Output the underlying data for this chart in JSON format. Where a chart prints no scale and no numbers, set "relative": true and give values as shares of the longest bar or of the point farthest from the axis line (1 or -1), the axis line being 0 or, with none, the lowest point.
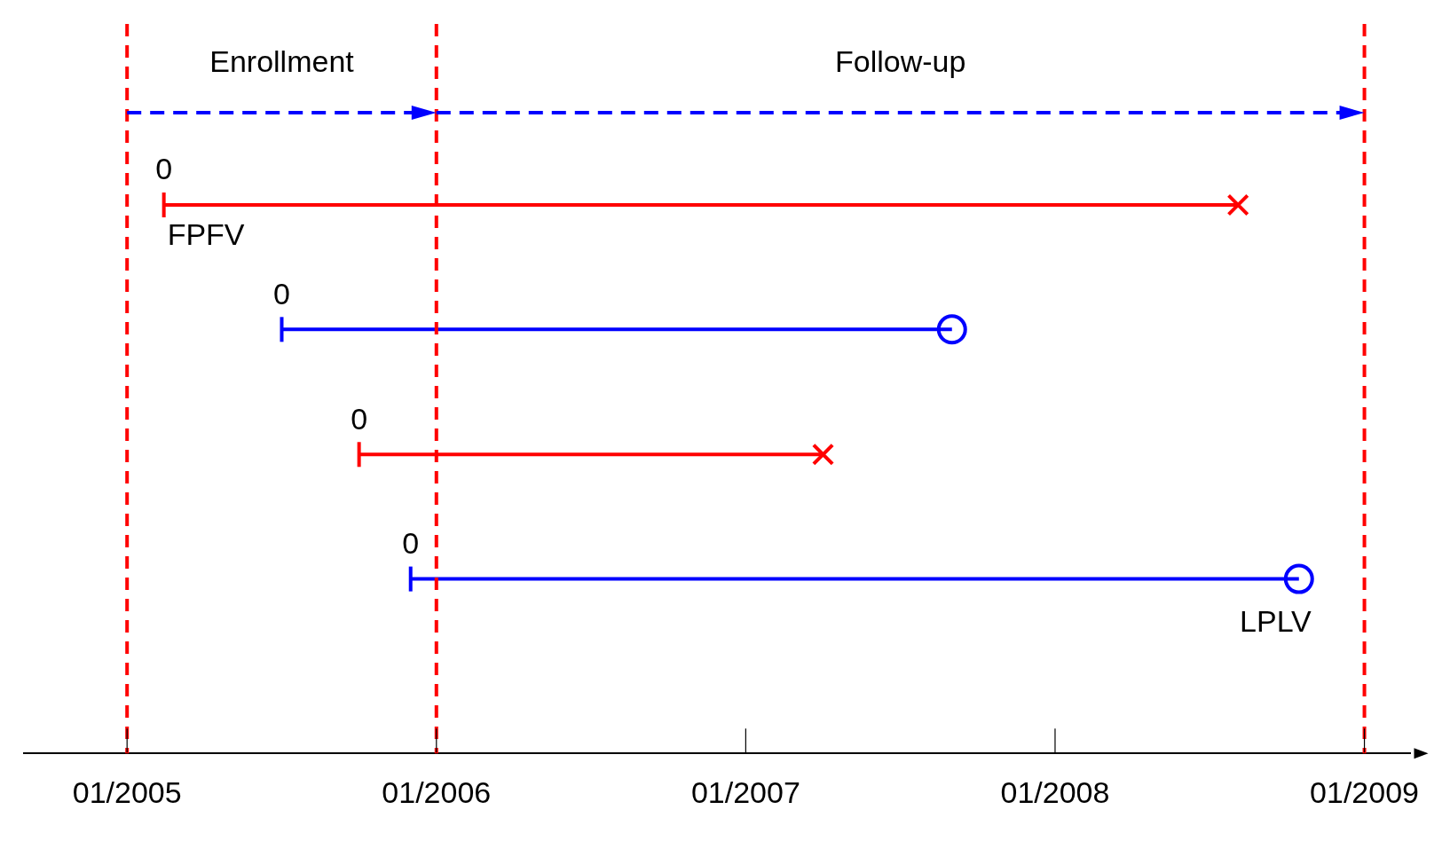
{
  "chart_data": {
    "type": "line",
    "relative": true,
    "series": [
      {
        "type": "line",
        "color": "#ff0000",
        "x": [
          "2005-02-14",
          "2008-08-04"
        ],
        "values": [
          1,
          1
        ]
      },
      {
        "type": "line",
        "color": "#0000ff",
        "x": [
          "2005-07-01",
          "2007-09-01"
        ],
        "values": [
          0.773,
          0.773
        ]
      },
      {
        "type": "line",
        "color": "#ff0000",
        "x": [
          "2005-10-01",
          "2007-04-01"
        ],
        "values": [
          0.545,
          0.545
        ]
      },
      {
        "type": "line",
        "color": "#0000ff",
        "x": [
          "2005-12-01",
          "2008-10-15"
        ],
        "values": [
          0.318,
          0.318
        ]
      },
      {
        "type": "scatter",
        "color": "#ff0000",
        "marker": "cross",
        "x": [
          "2008-08-04",
          "2007-04-01"
        ],
        "values": [
          1,
          0.545
        ]
      },
      {
        "type": "scatter",
        "color": "#0000ff",
        "marker": "circle",
        "x": [
          "2007-09-01",
          "2008-10-15"
        ],
        "values": [
          0.773,
          0.318
        ]
      }
    ],
    "xlim": [
      "2004-09-01",
      "2009-02-25"
    ],
    "xticks": [
      {
        "value": "2005-01",
        "label": "01/2005"
      },
      {
        "value": "2006-01",
        "label": "01/2006"
      },
      {
        "value": "2007-01",
        "label": "01/2007"
      },
      {
        "value": "2008-01",
        "label": "01/2008"
      },
      {
        "value": "2009-01",
        "label": "01/2009"
      }
    ],
    "ref_lines": [
      {
        "axis": "x",
        "value": "2005-01",
        "color": "#ff0000",
        "line_style": "dashed"
      },
      {
        "axis": "x",
        "value": "2006-01",
        "color": "#ff0000",
        "line_style": "dashed"
      },
      {
        "axis": "x",
        "value": "2009-01",
        "color": "#ff0000",
        "line_style": "dashed"
      }
    ],
    "annotations": [
      "Enrollment",
      "Follow-up",
      {
        "text": "0",
        "x": "2005-02-14",
        "y": 1
      },
      {
        "text": "0",
        "x": "2005-07-01",
        "y": 0.773
      },
      {
        "text": "0",
        "x": "2005-10-01",
        "y": 0.545
      },
      {
        "text": "0",
        "x": "2005-12-01",
        "y": 0.318
      },
      {
        "text": "FPFV",
        "x": "2005-02-14",
        "y": 1
      },
      {
        "text": "LPLV",
        "x": "2008-10-15",
        "y": 0.318
      }
    ],
    "grid": false,
    "legend": false
  }
}
